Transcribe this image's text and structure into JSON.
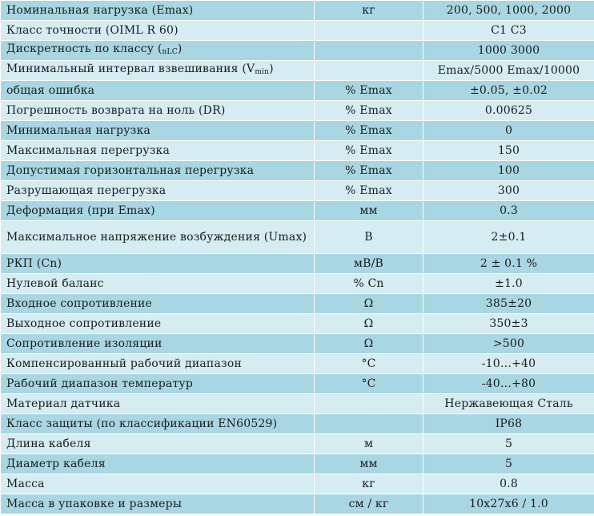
{
  "spec_table": {
    "rows": [
      {
        "name": "Номинальная нагрузка (Emax)",
        "unit": "кг",
        "value": "200, 500, 1000, 2000"
      },
      {
        "name": "Класс точности (OIML R 60)",
        "unit": "",
        "value": "C1 C3"
      },
      {
        "name": "Дискретность по классу (",
        "sub": "nLC",
        "name_after": ")",
        "unit": "",
        "value": "1000 3000"
      },
      {
        "name": "Минимальный интервал взвешивания (V",
        "sub": "min",
        "name_after": ")",
        "unit": "",
        "value": "Emax/5000 Emax/10000"
      },
      {
        "name": "общая ошибка",
        "unit": "% Emax",
        "value": "±0.05, ±0.02"
      },
      {
        "name": "Погрешность возврата на ноль (DR)",
        "unit": "% Emax",
        "value": "0.00625"
      },
      {
        "name": "Минимальная нагрузка",
        "unit": "% Emax",
        "value": "0"
      },
      {
        "name": "Максимальная перегрузка",
        "unit": "% Emax",
        "value": "150"
      },
      {
        "name": "Допустимая горизонтальная перегрузка",
        "unit": "% Emax",
        "value": "100"
      },
      {
        "name": "Разрушающая перегрузка",
        "unit": "% Emax",
        "value": "300"
      },
      {
        "name": "Деформация (при Emax)",
        "unit": "мм",
        "value": "0.3"
      },
      {
        "name": "Максимальное напряжение возбуждения (Umax)",
        "unit": "В",
        "value": "2±0.1"
      },
      {
        "name": "РКП (Cn)",
        "unit": "мВ/В",
        "value": "2 ± 0.1 %"
      },
      {
        "name": "Нулевой баланс",
        "unit": "% Cn",
        "value": "±1.0"
      },
      {
        "name": "Входное сопротивление",
        "unit": "Ω",
        "value": "385±20"
      },
      {
        "name": "Выходное сопротивление",
        "unit": "Ω",
        "value": "350±3"
      },
      {
        "name": "Сопротивление изоляции",
        "unit": "Ω",
        "value": ">500"
      },
      {
        "name": "Компенсированный рабочий диапазон",
        "unit": "°C",
        "value": "-10…+40"
      },
      {
        "name": "Рабочий диапазон температур",
        "unit": "°C",
        "value": "-40…+80"
      },
      {
        "name": "Материал датчика",
        "unit": "",
        "value": "Нержавеющая Сталь"
      },
      {
        "name": "Класс защиты (по классификации EN60529)",
        "unit": "",
        "value": "IP68"
      },
      {
        "name": "Длина кабеля",
        "unit": "м",
        "value": "5"
      },
      {
        "name": "Диаметр кабеля",
        "unit": "мм",
        "value": "5"
      },
      {
        "name": "Масса",
        "unit": "кг",
        "value": "0.8"
      },
      {
        "name": "Масса в упаковке и размеры",
        "unit": "см / кг",
        "value": "10x27x6 / 1.0"
      }
    ]
  },
  "colors": {
    "row_dark": "#a8d6e2",
    "row_light": "#d4ecf2"
  }
}
